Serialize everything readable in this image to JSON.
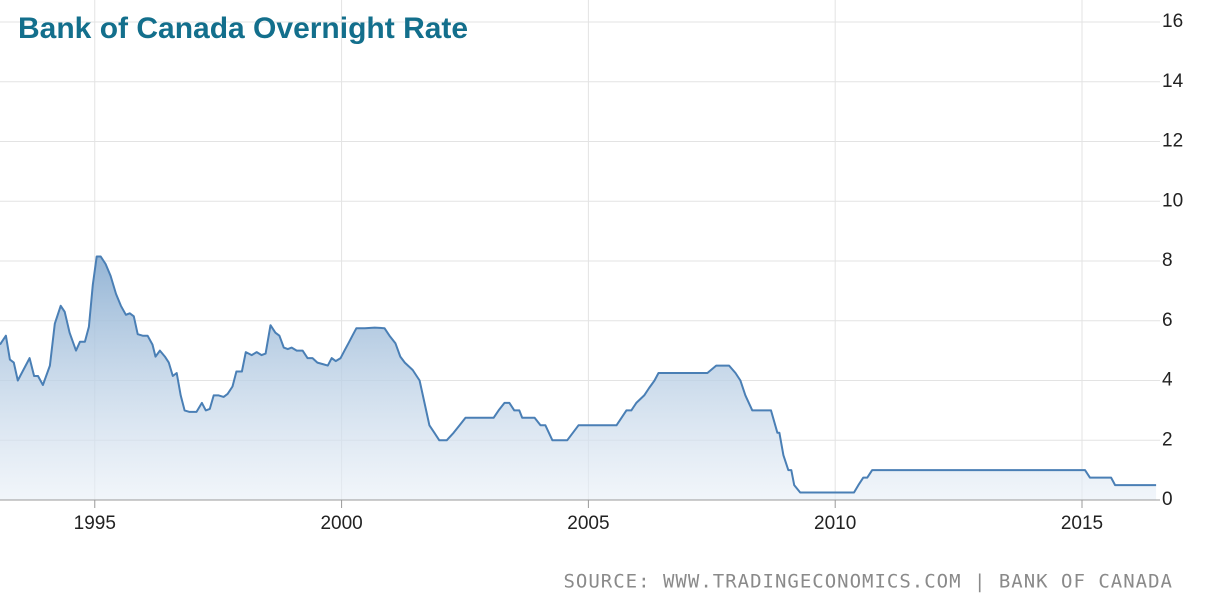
{
  "chart_data": {
    "type": "area",
    "title": "Bank of Canada Overnight Rate",
    "source": "SOURCE: WWW.TRADINGECONOMICS.COM | BANK OF CANADA",
    "color": "#4a7fb5",
    "grid": true,
    "xlim": [
      1993.08,
      2016.58
    ],
    "xticks": [
      1995,
      2000,
      2005,
      2010,
      2015
    ],
    "ylim": [
      0,
      16
    ],
    "yticks": [
      0,
      2,
      4,
      6,
      8,
      10,
      12,
      14,
      16
    ],
    "x": [
      1993.08,
      1993.2,
      1993.28,
      1993.36,
      1993.44,
      1993.68,
      1993.77,
      1993.85,
      1993.95,
      1994.09,
      1994.19,
      1994.31,
      1994.39,
      1994.49,
      1994.62,
      1994.7,
      1994.8,
      1994.88,
      1994.96,
      1995.04,
      1995.12,
      1995.22,
      1995.32,
      1995.43,
      1995.53,
      1995.63,
      1995.71,
      1995.79,
      1995.87,
      1995.97,
      1996.07,
      1996.17,
      1996.23,
      1996.32,
      1996.42,
      1996.5,
      1996.58,
      1996.66,
      1996.74,
      1996.82,
      1996.92,
      1997.06,
      1997.17,
      1997.25,
      1997.33,
      1997.41,
      1997.51,
      1997.61,
      1997.69,
      1997.79,
      1997.87,
      1997.98,
      1998.06,
      1998.18,
      1998.28,
      1998.38,
      1998.46,
      1998.56,
      1998.66,
      1998.74,
      1998.83,
      1998.91,
      1998.99,
      1999.09,
      1999.21,
      1999.31,
      1999.41,
      1999.51,
      1999.62,
      1999.72,
      1999.8,
      1999.88,
      1999.98,
      2000.06,
      2000.14,
      2000.22,
      2000.3,
      2000.47,
      2000.67,
      2000.87,
      2000.97,
      2001.09,
      2001.19,
      2001.28,
      2001.44,
      2001.58,
      2001.68,
      2001.78,
      2001.88,
      2001.98,
      2002.13,
      2002.27,
      2002.39,
      2002.51,
      2003.08,
      2003.18,
      2003.3,
      2003.4,
      2003.5,
      2003.6,
      2003.66,
      2003.91,
      2004.03,
      2004.13,
      2004.27,
      2004.57,
      2004.8,
      2005.57,
      2005.67,
      2005.77,
      2005.87,
      2005.97,
      2006.13,
      2006.23,
      2006.34,
      2006.42,
      2007.41,
      2007.59,
      2007.85,
      2007.98,
      2008.08,
      2008.18,
      2008.32,
      2008.7,
      2008.83,
      2008.87,
      2008.95,
      2009.05,
      2009.11,
      2009.17,
      2009.29,
      2010.38,
      2010.47,
      2010.57,
      2010.65,
      2010.75,
      2015.06,
      2015.16,
      2015.59,
      2015.67,
      2016.5
    ],
    "values": [
      5.2,
      5.5,
      4.7,
      4.6,
      4.0,
      4.75,
      4.15,
      4.15,
      3.85,
      4.5,
      5.9,
      6.5,
      6.3,
      5.6,
      5.0,
      5.3,
      5.3,
      5.8,
      7.2,
      8.15,
      8.15,
      7.9,
      7.5,
      6.9,
      6.5,
      6.2,
      6.25,
      6.15,
      5.55,
      5.5,
      5.5,
      5.2,
      4.8,
      5.0,
      4.8,
      4.6,
      4.15,
      4.25,
      3.5,
      3.0,
      2.95,
      2.95,
      3.25,
      3.0,
      3.05,
      3.5,
      3.5,
      3.45,
      3.55,
      3.8,
      4.3,
      4.3,
      4.95,
      4.85,
      4.95,
      4.85,
      4.9,
      5.85,
      5.6,
      5.5,
      5.1,
      5.05,
      5.1,
      5.0,
      5.0,
      4.75,
      4.75,
      4.6,
      4.55,
      4.5,
      4.75,
      4.65,
      4.75,
      5.0,
      5.25,
      5.5,
      5.75,
      5.75,
      5.77,
      5.75,
      5.5,
      5.25,
      4.8,
      4.6,
      4.35,
      4.0,
      3.25,
      2.5,
      2.25,
      2.0,
      2.0,
      2.25,
      2.5,
      2.75,
      2.75,
      3.0,
      3.25,
      3.25,
      3.0,
      3.0,
      2.75,
      2.75,
      2.5,
      2.5,
      2.0,
      2.0,
      2.5,
      2.5,
      2.75,
      3.0,
      3.0,
      3.25,
      3.5,
      3.75,
      4.0,
      4.25,
      4.25,
      4.5,
      4.5,
      4.25,
      4.0,
      3.5,
      3.0,
      3.0,
      2.25,
      2.25,
      1.5,
      1.0,
      1.0,
      0.5,
      0.25,
      0.25,
      0.5,
      0.75,
      0.75,
      1.0,
      1.0,
      0.75,
      0.75,
      0.5,
      0.5
    ]
  }
}
